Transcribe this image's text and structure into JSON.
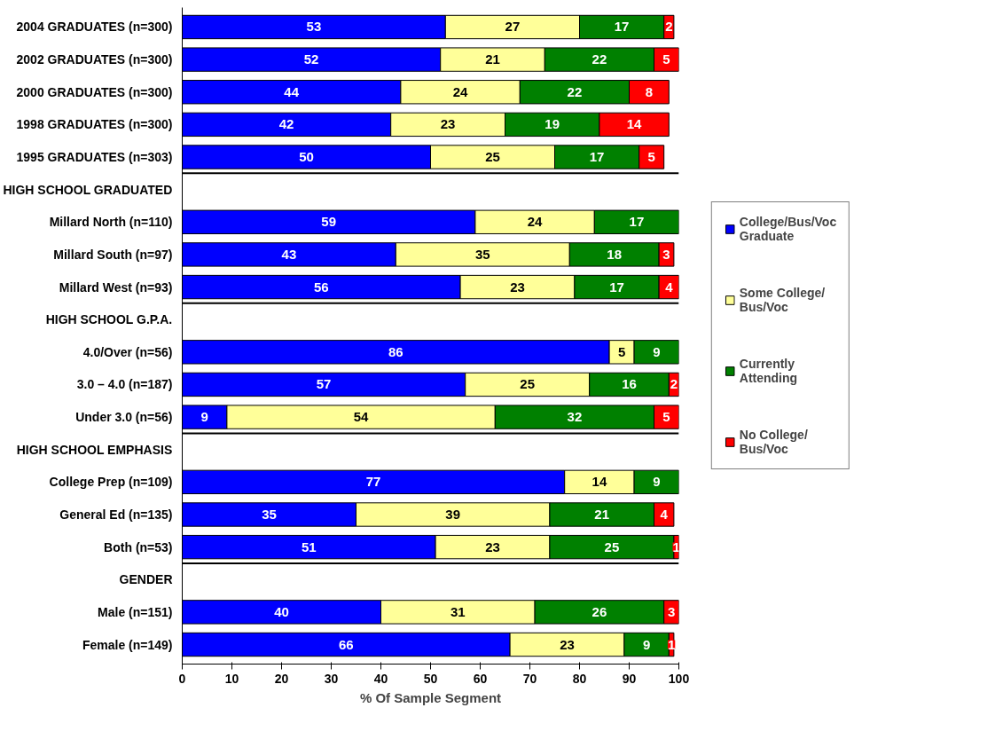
{
  "chart_data": {
    "type": "bar",
    "orientation": "horizontal",
    "stacked": true,
    "data_labels": true,
    "legend": "right",
    "grid": false,
    "xlabel": "% Of Sample Segment",
    "xlim": [
      0,
      100
    ],
    "xticks": [
      0,
      10,
      20,
      30,
      40,
      50,
      60,
      70,
      80,
      90,
      100
    ],
    "categories": [
      "2004 GRADUATES (n=300)",
      "2002 GRADUATES (n=300)",
      "2000 GRADUATES (n=300)",
      "1998 GRADUATES (n=300)",
      "1995 GRADUATES (n=303)",
      "HIGH SCHOOL GRADUATED",
      "Millard North (n=110)",
      "Millard South (n=97)",
      "Millard West (n=93)",
      "HIGH SCHOOL G.P.A.",
      "4.0/Over (n=56)",
      "3.0 – 4.0 (n=187)",
      "Under 3.0 (n=56)",
      "HIGH SCHOOL EMPHASIS",
      "College Prep (n=109)",
      "General Ed (n=135)",
      "Both (n=53)",
      "GENDER",
      "Male (n=151)",
      "Female (n=149)"
    ],
    "series": [
      {
        "name": "College/Bus/Voc Graduate",
        "color": "#0000ff",
        "values": [
          53,
          52,
          44,
          42,
          50,
          null,
          59,
          43,
          56,
          null,
          86,
          57,
          9,
          null,
          77,
          35,
          51,
          null,
          40,
          66
        ]
      },
      {
        "name": "Some College/ Bus/Voc",
        "color": "#ffff99",
        "values": [
          27,
          21,
          24,
          23,
          25,
          null,
          24,
          35,
          23,
          null,
          5,
          25,
          54,
          null,
          14,
          39,
          23,
          null,
          31,
          23
        ]
      },
      {
        "name": "Currently Attending",
        "color": "#008000",
        "values": [
          17,
          22,
          22,
          19,
          17,
          null,
          17,
          18,
          17,
          null,
          9,
          16,
          32,
          null,
          9,
          21,
          25,
          null,
          26,
          9
        ]
      },
      {
        "name": "No College/ Bus/Voc",
        "color": "#ff0000",
        "values": [
          2,
          5,
          8,
          14,
          5,
          null,
          null,
          3,
          4,
          null,
          null,
          2,
          5,
          null,
          null,
          4,
          1,
          null,
          3,
          1
        ]
      }
    ]
  }
}
